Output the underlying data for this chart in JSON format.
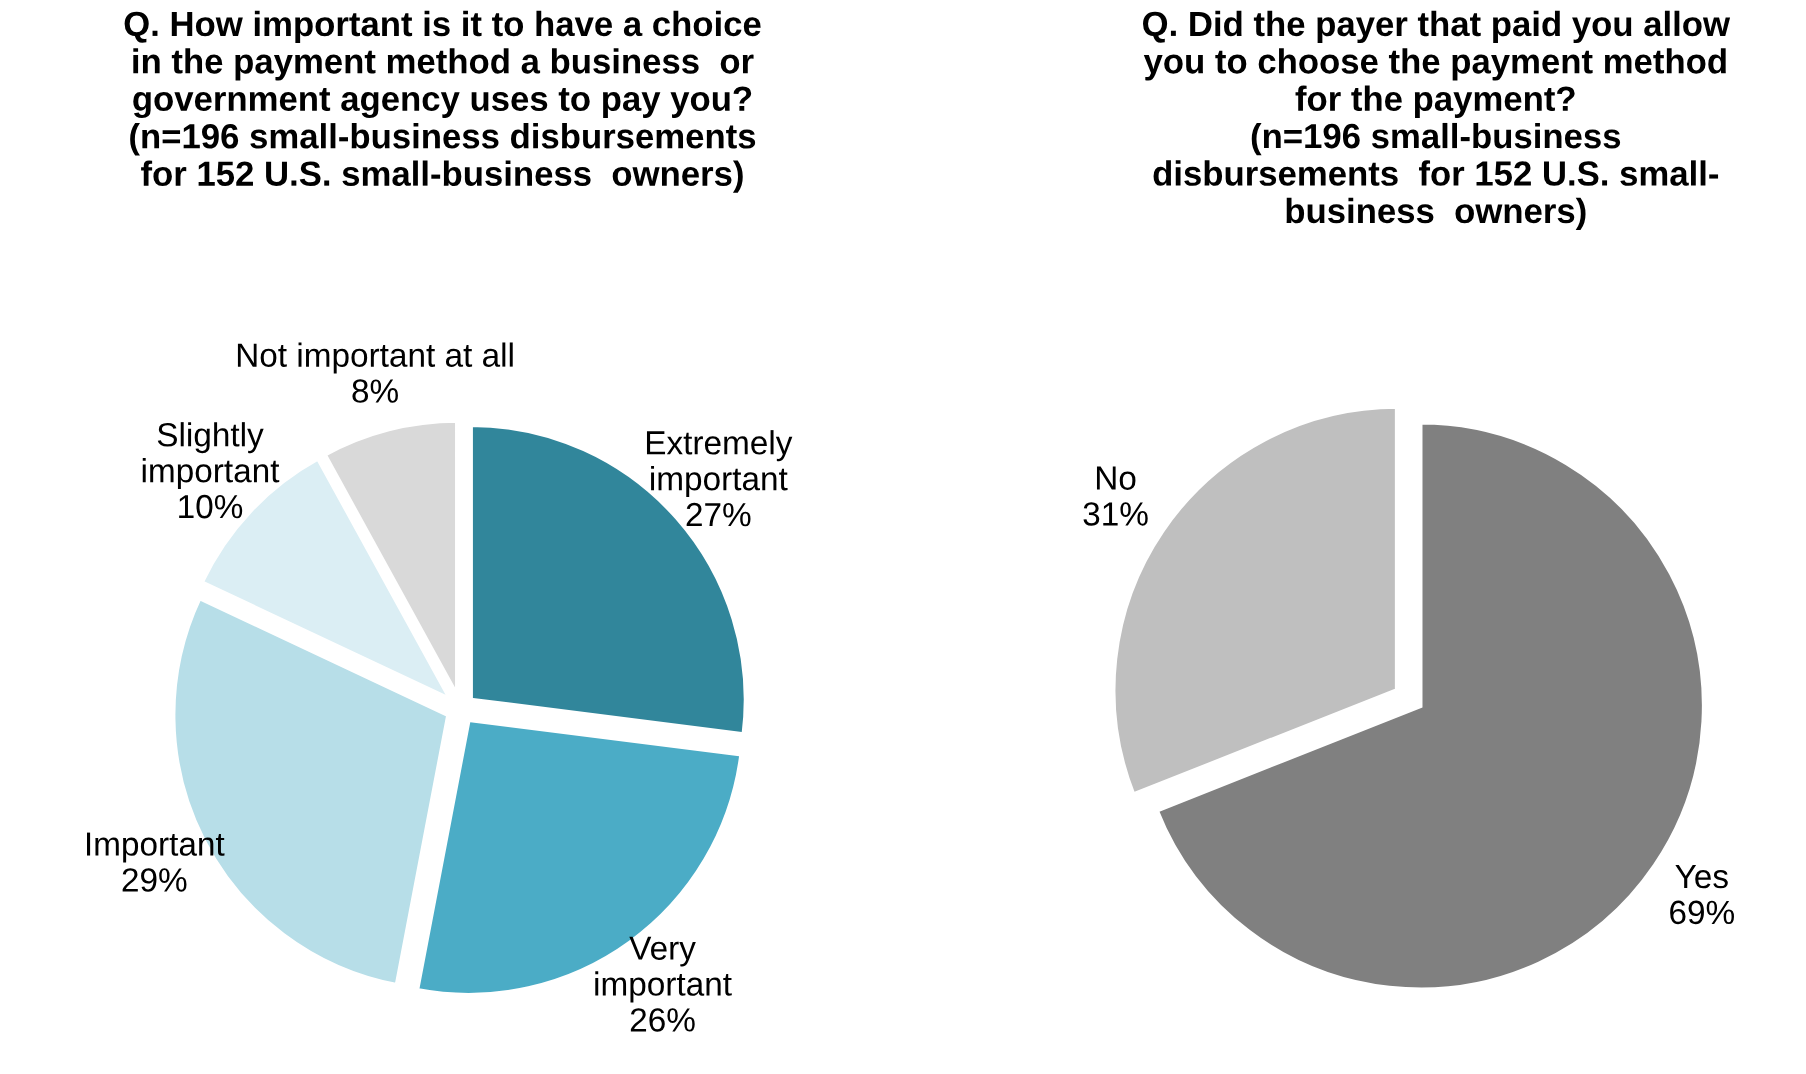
{
  "chart_data": [
    {
      "type": "pie",
      "title": "Q. How important is it to have a choice\nin the payment method a business  or\ngovernment agency uses to pay you?\n(n=196 small-business disbursements\nfor 152 U.S. small-business  owners)",
      "categories": [
        "Extremely\nimportant",
        "Very\nimportant",
        "Important",
        "Slightly\nimportant",
        "Not important at all"
      ],
      "values": [
        27,
        26,
        29,
        10,
        8
      ],
      "value_labels": [
        "27%",
        "26%",
        "29%",
        "10%",
        "8%"
      ],
      "colors": [
        "#31869b",
        "#4bacc6",
        "#b7dee8",
        "#dbeef4",
        "#d9d9d9"
      ]
    },
    {
      "type": "pie",
      "title": "Q. Did the payer that paid you allow\nyou to choose the payment method\nfor the payment?\n(n=196 small-business\ndisbursements  for 152 U.S. small-\nbusiness  owners)",
      "categories": [
        "Yes",
        "No"
      ],
      "values": [
        69,
        31
      ],
      "value_labels": [
        "69%",
        "31%"
      ],
      "colors": [
        "#808080",
        "#bfbfbf"
      ]
    }
  ]
}
